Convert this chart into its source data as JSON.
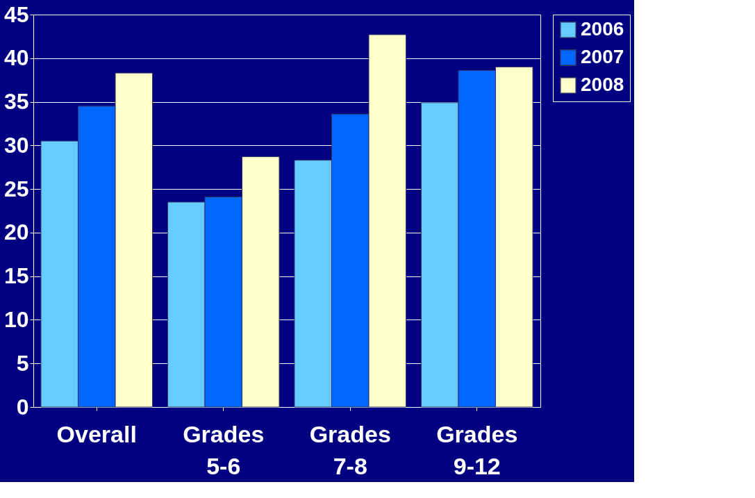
{
  "chart_data": {
    "type": "bar",
    "categories": [
      "Overall",
      "Grades 5-6",
      "Grades 7-8",
      "Grades 9-12"
    ],
    "series": [
      {
        "name": "2006",
        "color": "#66ccff",
        "values": [
          30.5,
          23.5,
          28.3,
          34.9
        ]
      },
      {
        "name": "2007",
        "color": "#0066ff",
        "values": [
          34.5,
          24.1,
          33.6,
          38.6
        ]
      },
      {
        "name": "2008",
        "color": "#ffffcc",
        "values": [
          38.3,
          28.7,
          42.7,
          39.0
        ]
      }
    ],
    "ylim": [
      0,
      45
    ],
    "yticks": [
      0,
      5,
      10,
      15,
      20,
      25,
      30,
      35,
      40,
      45
    ],
    "grid": "y",
    "legend": "right"
  }
}
